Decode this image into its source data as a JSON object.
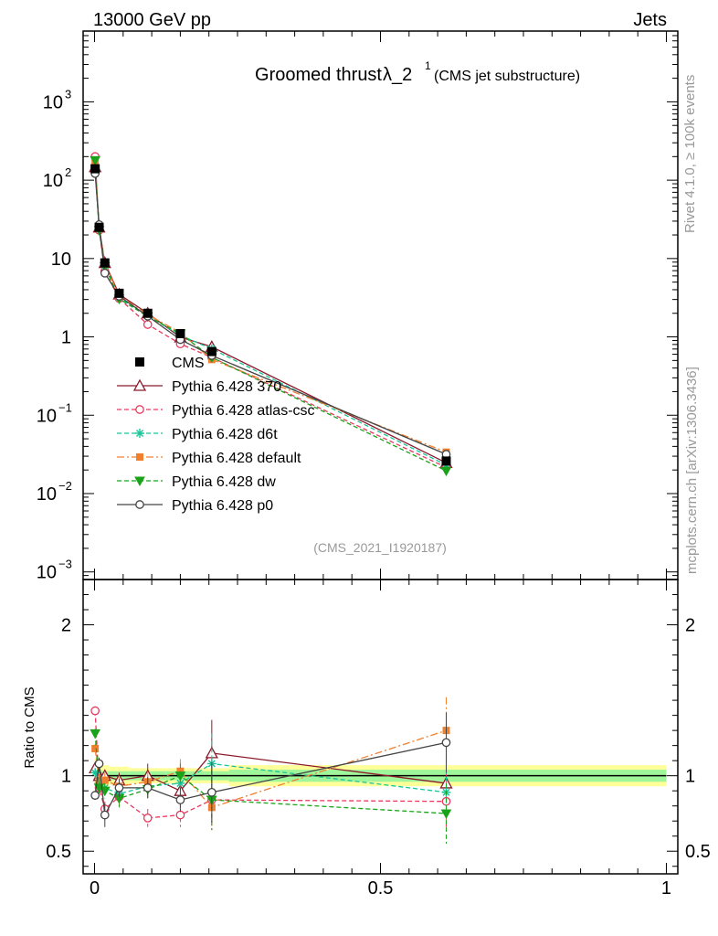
{
  "header": {
    "left": "13000 GeV pp",
    "right": "Jets"
  },
  "side": {
    "rivet": "Rivet 4.1.0, ≥ 100k events",
    "mcplots": "mcplots.cern.ch [arXiv:1306.3436]"
  },
  "chart_data": {
    "type": "line",
    "title": "Groomed thrust",
    "title_symbol": "λ_2",
    "title_sup": "1",
    "subtitle": "(CMS jet substructure)",
    "analysis": "(CMS_2021_I1920187)",
    "ylabel_ratio": "Ratio to CMS",
    "xlim": [
      -0.02,
      1.02
    ],
    "ylim_main": [
      0.0008,
      8000
    ],
    "ylim_ratio": [
      0.35,
      2.3
    ],
    "x_ticks": [
      {
        "v": 0,
        "label": "0"
      },
      {
        "v": 0.5,
        "label": "0.5"
      },
      {
        "v": 1,
        "label": "1"
      }
    ],
    "y_ticks_main": [
      {
        "v": 0.001,
        "base": "10",
        "sup": "−3"
      },
      {
        "v": 0.01,
        "base": "10",
        "sup": "−2"
      },
      {
        "v": 0.1,
        "base": "10",
        "sup": "−1"
      },
      {
        "v": 1,
        "base": "1",
        "sup": ""
      },
      {
        "v": 10,
        "base": "10",
        "sup": ""
      },
      {
        "v": 100,
        "base": "10",
        "sup": "2"
      },
      {
        "v": 1000,
        "base": "10",
        "sup": "3"
      }
    ],
    "y_ticks_ratio": [
      {
        "v": 0.5,
        "label": "0.5"
      },
      {
        "v": 1,
        "label": "1"
      },
      {
        "v": 2,
        "label": "2"
      }
    ],
    "x": [
      0.001,
      0.008,
      0.018,
      0.043,
      0.093,
      0.15,
      0.205,
      0.615
    ],
    "bin_edges": [
      0,
      0.004,
      0.013,
      0.025,
      0.06,
      0.125,
      0.175,
      0.235,
      1.0
    ],
    "data": {
      "name": "CMS",
      "values": [
        140,
        25,
        8.8,
        3.6,
        2.0,
        1.1,
        0.65,
        0.026
      ],
      "band_stat": [
        0.04,
        0.04,
        0.03,
        0.03,
        0.03,
        0.03,
        0.03,
        0.04
      ],
      "band_total": [
        0.12,
        0.1,
        0.07,
        0.06,
        0.05,
        0.05,
        0.05,
        0.07
      ]
    },
    "series": [
      {
        "name": "Pythia 6.428 370",
        "color": "#8b1a2b",
        "dash": "",
        "marker": "triangle-open",
        "ratio": [
          1.05,
          1.0,
          1.0,
          0.97,
          1.0,
          0.9,
          1.15,
          0.95
        ],
        "ratio_err": [
          0.03,
          0.03,
          0.04,
          0.05,
          0.08,
          0.08,
          0.22,
          0.2
        ]
      },
      {
        "name": "Pythia 6.428 atlas-csc",
        "color": "#e8395e",
        "dash": "5,3",
        "marker": "circle-open",
        "ratio": [
          1.43,
          0.92,
          0.78,
          0.86,
          0.72,
          0.74,
          0.84,
          0.83
        ],
        "ratio_err": [
          0.03,
          0.04,
          0.05,
          0.06,
          0.06,
          0.08,
          0.2,
          0.2
        ]
      },
      {
        "name": "Pythia 6.428 d6t",
        "color": "#19c49a",
        "dash": "5,3",
        "marker": "star",
        "ratio": [
          1.02,
          0.95,
          0.92,
          0.88,
          0.93,
          0.95,
          1.08,
          0.89
        ],
        "ratio_err": [
          0.03,
          0.04,
          0.05,
          0.06,
          0.07,
          0.08,
          0.2,
          0.2
        ]
      },
      {
        "name": "Pythia 6.428 default",
        "color": "#f08030",
        "dash": "8,3,2,3",
        "marker": "square",
        "ratio": [
          1.18,
          0.97,
          0.97,
          0.93,
          0.96,
          1.03,
          0.79,
          1.3
        ],
        "ratio_err": [
          0.03,
          0.04,
          0.05,
          0.06,
          0.07,
          0.08,
          0.15,
          0.22
        ]
      },
      {
        "name": "Pythia 6.428 dw",
        "color": "#1aa21a",
        "dash": "5,3",
        "marker": "triangle-down",
        "ratio": [
          1.28,
          0.92,
          0.9,
          0.85,
          0.91,
          1.0,
          0.84,
          0.75
        ],
        "ratio_err": [
          0.03,
          0.04,
          0.05,
          0.06,
          0.07,
          0.08,
          0.2,
          0.2
        ]
      },
      {
        "name": "Pythia 6.428 p0",
        "color": "#444444",
        "dash": "",
        "marker": "circle-open",
        "ratio": [
          0.87,
          1.08,
          0.74,
          0.92,
          0.92,
          0.84,
          0.89,
          1.22
        ],
        "ratio_err": [
          0.03,
          0.04,
          0.08,
          0.06,
          0.07,
          0.08,
          0.2,
          0.2
        ]
      }
    ]
  }
}
